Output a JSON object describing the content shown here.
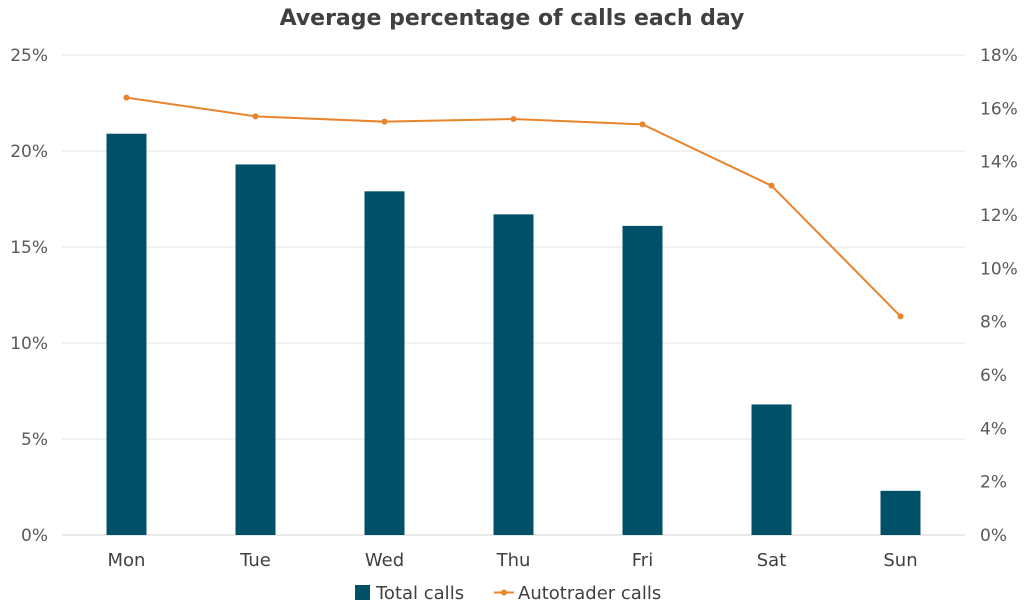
{
  "chart_data": {
    "type": "bar",
    "title": "Average percentage of calls each day",
    "categories": [
      "Mon",
      "Tue",
      "Wed",
      "Thu",
      "Fri",
      "Sat",
      "Sun"
    ],
    "series": [
      {
        "name": "Total calls",
        "type": "bar",
        "axis": "left",
        "color": "#005068",
        "values": [
          20.9,
          19.3,
          17.9,
          16.7,
          16.1,
          6.8,
          2.3
        ]
      },
      {
        "name": "Autotrader calls",
        "type": "line",
        "axis": "right",
        "color": "#E8842C",
        "values": [
          16.4,
          15.7,
          15.5,
          15.6,
          15.4,
          13.1,
          8.2
        ]
      }
    ],
    "y_left": {
      "ylim": [
        0,
        25
      ],
      "ticks": [
        "0%",
        "5%",
        "10%",
        "15%",
        "20%",
        "25%"
      ],
      "tick_values": [
        0,
        5,
        10,
        15,
        20,
        25
      ]
    },
    "y_right": {
      "ylim": [
        0,
        18
      ],
      "ticks": [
        "0%",
        "2%",
        "4%",
        "6%",
        "8%",
        "10%",
        "12%",
        "14%",
        "16%",
        "18%"
      ],
      "tick_values": [
        0,
        2,
        4,
        6,
        8,
        10,
        12,
        14,
        16,
        18
      ]
    },
    "grid": true,
    "legend_position": "bottom"
  }
}
